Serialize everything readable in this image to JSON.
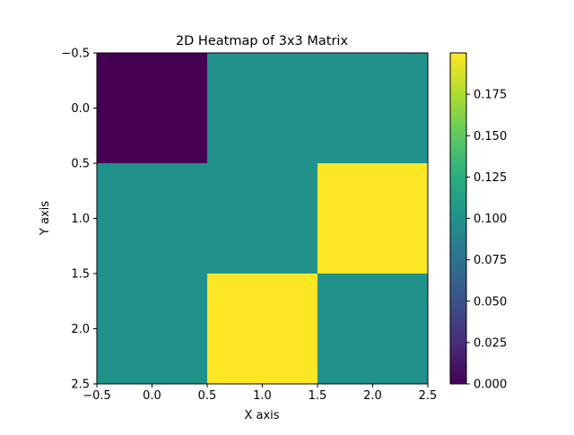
{
  "chart_data": {
    "type": "heatmap",
    "title": "2D Heatmap of 3x3 Matrix",
    "xlabel": "X axis",
    "ylabel": "Y axis",
    "xlim": [
      -0.5,
      2.5
    ],
    "ylim": [
      2.5,
      -0.5
    ],
    "x_ticks": [
      -0.5,
      0.0,
      0.5,
      1.0,
      1.5,
      2.0,
      2.5
    ],
    "y_ticks": [
      -0.5,
      0.0,
      0.5,
      1.0,
      1.5,
      2.0,
      2.5
    ],
    "x_tick_labels": [
      "−0.5",
      "0.0",
      "0.5",
      "1.0",
      "1.5",
      "2.0",
      "2.5"
    ],
    "y_tick_labels": [
      "−0.5",
      "0.0",
      "0.5",
      "1.0",
      "1.5",
      "2.0",
      "2.5"
    ],
    "matrix": [
      [
        0.0,
        0.1,
        0.1
      ],
      [
        0.1,
        0.1,
        0.2
      ],
      [
        0.1,
        0.2,
        0.1
      ]
    ],
    "colormap": "viridis",
    "colorbar": {
      "range": [
        0.0,
        0.2
      ],
      "ticks": [
        0.0,
        0.025,
        0.05,
        0.075,
        0.1,
        0.125,
        0.15,
        0.175
      ],
      "tick_labels": [
        "0.000",
        "0.025",
        "0.050",
        "0.075",
        "0.100",
        "0.125",
        "0.150",
        "0.175"
      ]
    },
    "grid": false
  }
}
